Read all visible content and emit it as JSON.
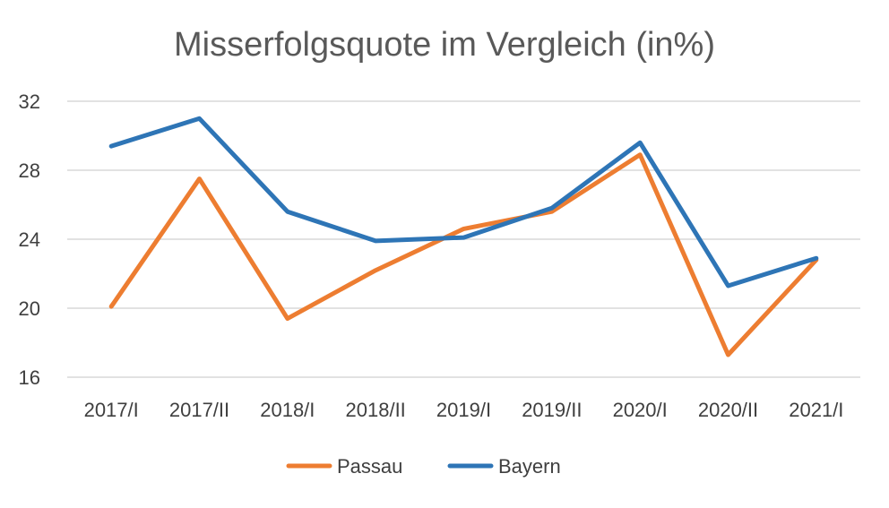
{
  "chart_data": {
    "type": "line",
    "title": "Misserfolgsquote im Vergleich (in%)",
    "xlabel": "",
    "ylabel": "",
    "categories": [
      "2017/I",
      "2017/II",
      "2018/I",
      "2018/II",
      "2019/I",
      "2019/II",
      "2020/I",
      "2020/II",
      "2021/I"
    ],
    "ylim": [
      16,
      32
    ],
    "yticks": [
      16,
      20,
      24,
      28,
      32
    ],
    "grid": true,
    "legend_position": "bottom",
    "series": [
      {
        "name": "Passau",
        "color": "#ED7D31",
        "values": [
          20.1,
          27.5,
          19.4,
          22.2,
          24.6,
          25.6,
          28.9,
          17.3,
          22.8
        ]
      },
      {
        "name": "Bayern",
        "color": "#2E75B6",
        "values": [
          29.4,
          31.0,
          25.6,
          23.9,
          24.1,
          25.8,
          29.6,
          21.3,
          22.9
        ]
      }
    ]
  }
}
